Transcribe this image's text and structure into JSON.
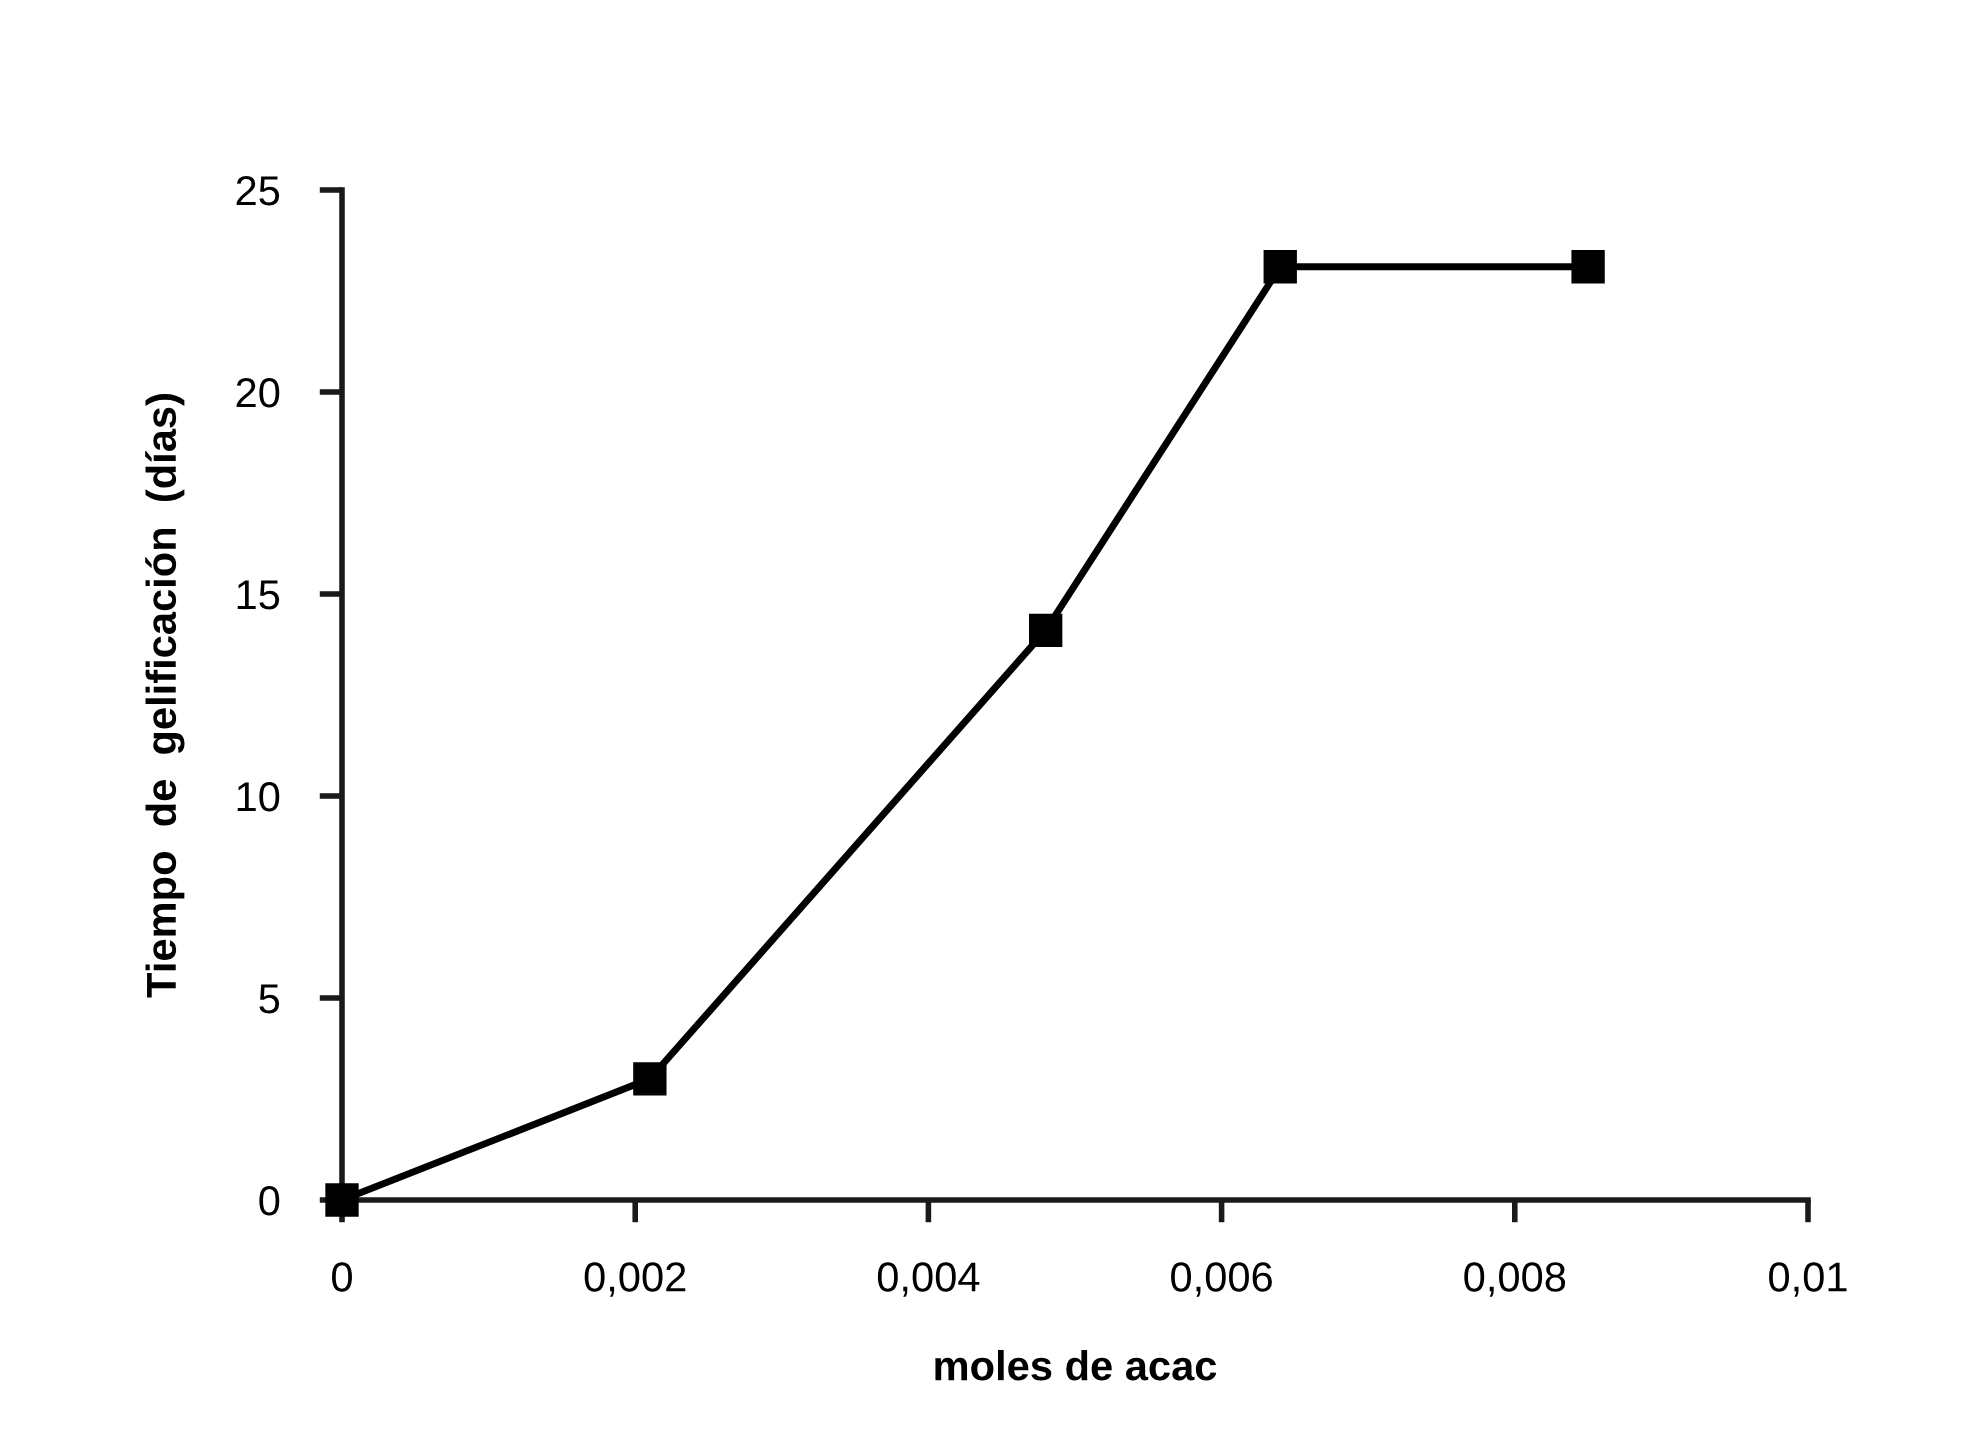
{
  "chart_data": {
    "type": "line",
    "xlabel": "moles de acac",
    "ylabel": "Tiempo  de  gelificación  (días)",
    "x": [
      0,
      0.0021,
      0.0048,
      0.0064,
      0.0085
    ],
    "series": [
      {
        "color": "#000000",
        "values": [
          0,
          3,
          14.1,
          23.1,
          23.1
        ]
      }
    ],
    "xlim": [
      0,
      0.01
    ],
    "xticks": [
      {
        "value": 0,
        "label": "0"
      },
      {
        "value": 0.002,
        "label": "0,002"
      },
      {
        "value": 0.004,
        "label": "0,004"
      },
      {
        "value": 0.006,
        "label": "0,006"
      },
      {
        "value": 0.008,
        "label": "0,008"
      },
      {
        "value": 0.01,
        "label": "0,01"
      }
    ],
    "ylim": [
      0,
      25
    ],
    "yticks": [
      0,
      5,
      10,
      15,
      20,
      25
    ],
    "grid": false,
    "legend": false,
    "marker": "square",
    "line_style": "solid"
  }
}
